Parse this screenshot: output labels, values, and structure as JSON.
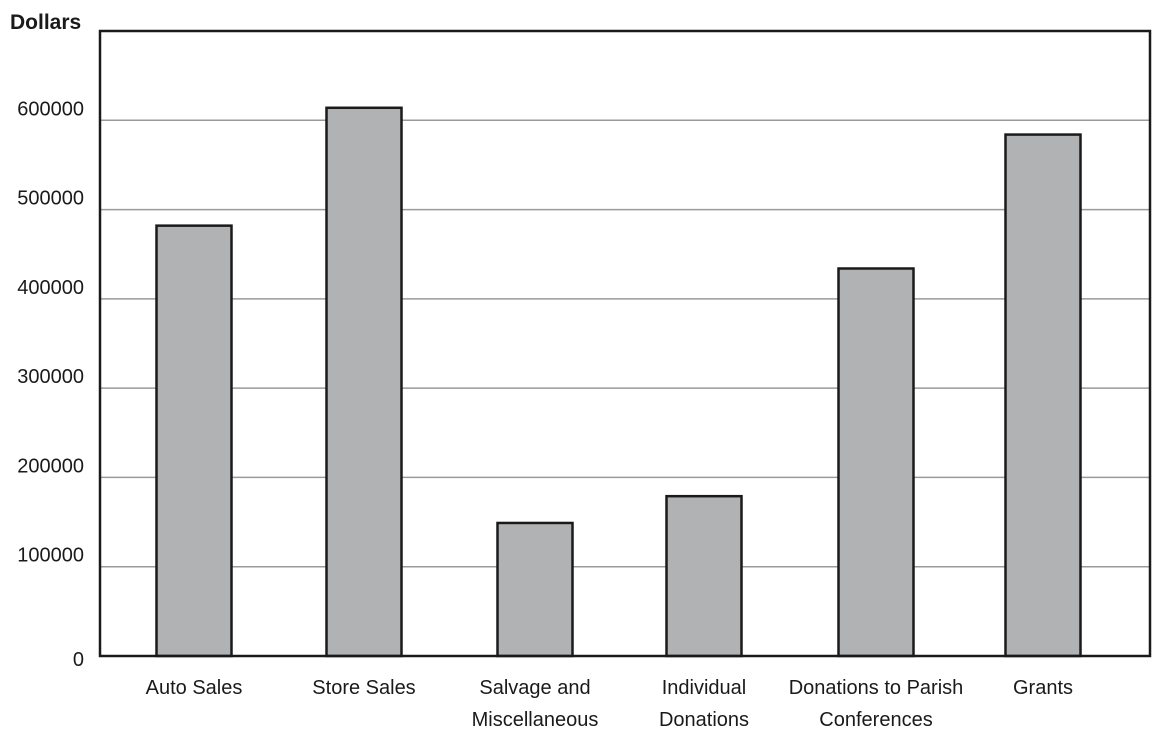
{
  "chart_data": {
    "type": "bar",
    "title": "",
    "xlabel": "",
    "ylabel": "Dollars",
    "ylim": [
      0,
      700000
    ],
    "yticks": [
      0,
      100000,
      200000,
      300000,
      400000,
      500000,
      600000
    ],
    "ytick_labels": [
      "0",
      "100000",
      "200000",
      "300000",
      "400000",
      "500000",
      "600000"
    ],
    "grid": true,
    "categories": [
      [
        "Auto Sales"
      ],
      [
        "Store Sales"
      ],
      [
        "Salvage and",
        "Miscellaneous"
      ],
      [
        "Individual",
        "Donations"
      ],
      [
        "Donations to Parish",
        "Conferences"
      ],
      [
        "Grants"
      ]
    ],
    "values": [
      482000,
      614000,
      149000,
      179000,
      434000,
      584000
    ],
    "colors": {
      "bar_fill": "#b0b2b4",
      "bar_stroke": "#1a1a1a",
      "grid": "#9a9a9a",
      "frame": "#1a1a1a"
    }
  }
}
